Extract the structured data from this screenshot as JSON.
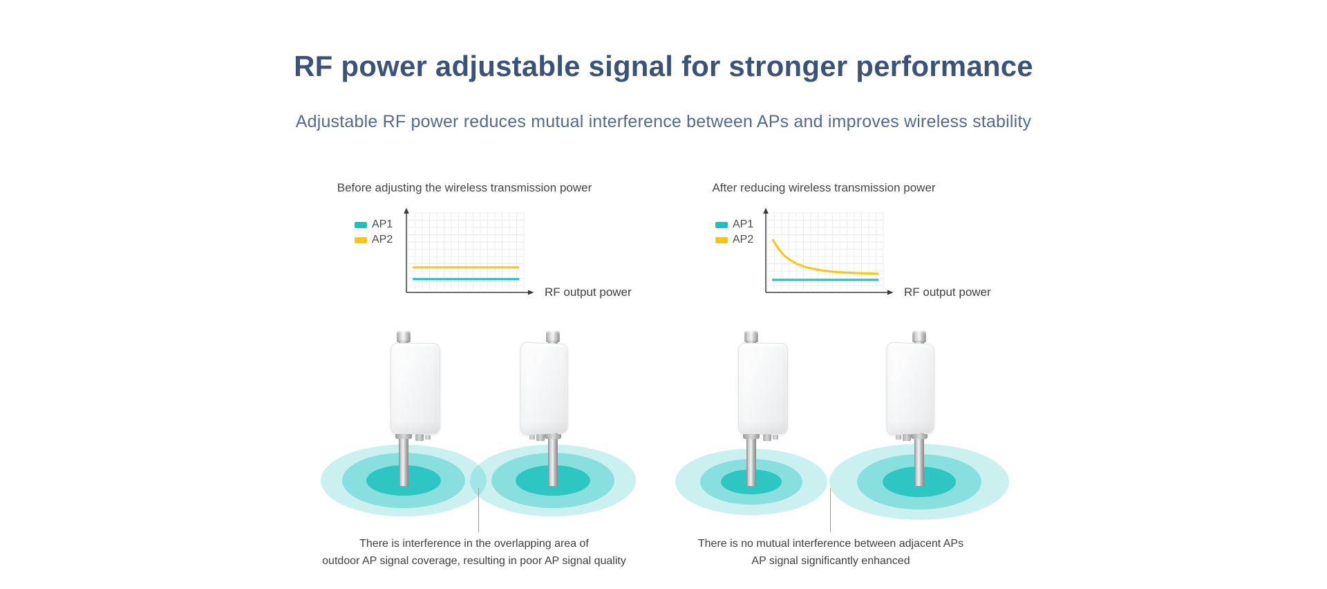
{
  "header": {
    "title": "RF power adjustable signal for stronger performance",
    "subtitle": "Adjustable RF power reduces mutual interference between APs and improves wireless stability"
  },
  "chart_data": [
    {
      "type": "line",
      "id": "before",
      "title": "Before adjusting the wireless transmission power",
      "xlabel": "RF output power",
      "ylabel": "",
      "grid": true,
      "legend_position": "left",
      "axis_ticks": "none (conceptual diagram, no tick labels shown)",
      "units": "y values are normalized fractions of the plot height",
      "ylim": [
        0,
        1
      ],
      "series": [
        {
          "name": "AP1",
          "color": "#14C3C3",
          "points": [
            [
              0.05,
              0.17
            ],
            [
              0.95,
              0.17
            ]
          ]
        },
        {
          "name": "AP2",
          "color": "#FFC40C",
          "points": [
            [
              0.05,
              0.32
            ],
            [
              0.95,
              0.32
            ]
          ]
        }
      ]
    },
    {
      "type": "line",
      "id": "after",
      "title": "After reducing wireless transmission power",
      "xlabel": "RF output power",
      "ylabel": "",
      "grid": true,
      "legend_position": "left",
      "axis_ticks": "none (conceptual diagram, no tick labels shown)",
      "units": "y values are normalized fractions of the plot height",
      "ylim": [
        0,
        1
      ],
      "series": [
        {
          "name": "AP1",
          "color": "#14C3C3",
          "points": [
            [
              0.05,
              0.16
            ],
            [
              0.95,
              0.16
            ]
          ]
        },
        {
          "name": "AP2",
          "color": "#FFC40C",
          "points": [
            [
              0.05,
              0.67
            ],
            [
              0.1,
              0.55
            ],
            [
              0.15,
              0.467
            ],
            [
              0.2,
              0.41
            ],
            [
              0.26,
              0.362
            ],
            [
              0.33,
              0.325
            ],
            [
              0.4,
              0.3
            ],
            [
              0.48,
              0.28
            ],
            [
              0.57,
              0.265
            ],
            [
              0.67,
              0.254
            ],
            [
              0.78,
              0.247
            ],
            [
              0.95,
              0.24
            ]
          ]
        }
      ]
    }
  ],
  "panels": [
    {
      "caption_line1": "There is interference in the overlapping area of",
      "caption_line2": "outdoor AP signal coverage, resulting in poor AP signal quality"
    },
    {
      "caption_line1": "There is no mutual interference between adjacent APs",
      "caption_line2": "AP signal significantly enhanced"
    }
  ],
  "colors": {
    "title_navy": "#3C5378",
    "subtitle_navy": "#54698C",
    "ap1_teal": "#14C3C3",
    "ap2_yellow": "#FFC40C",
    "coverage_teal": "#0FBDBA",
    "text_dark": "#3F3F3F",
    "axis": "#3A3A3A",
    "grid_gray": "#ECECEC"
  }
}
